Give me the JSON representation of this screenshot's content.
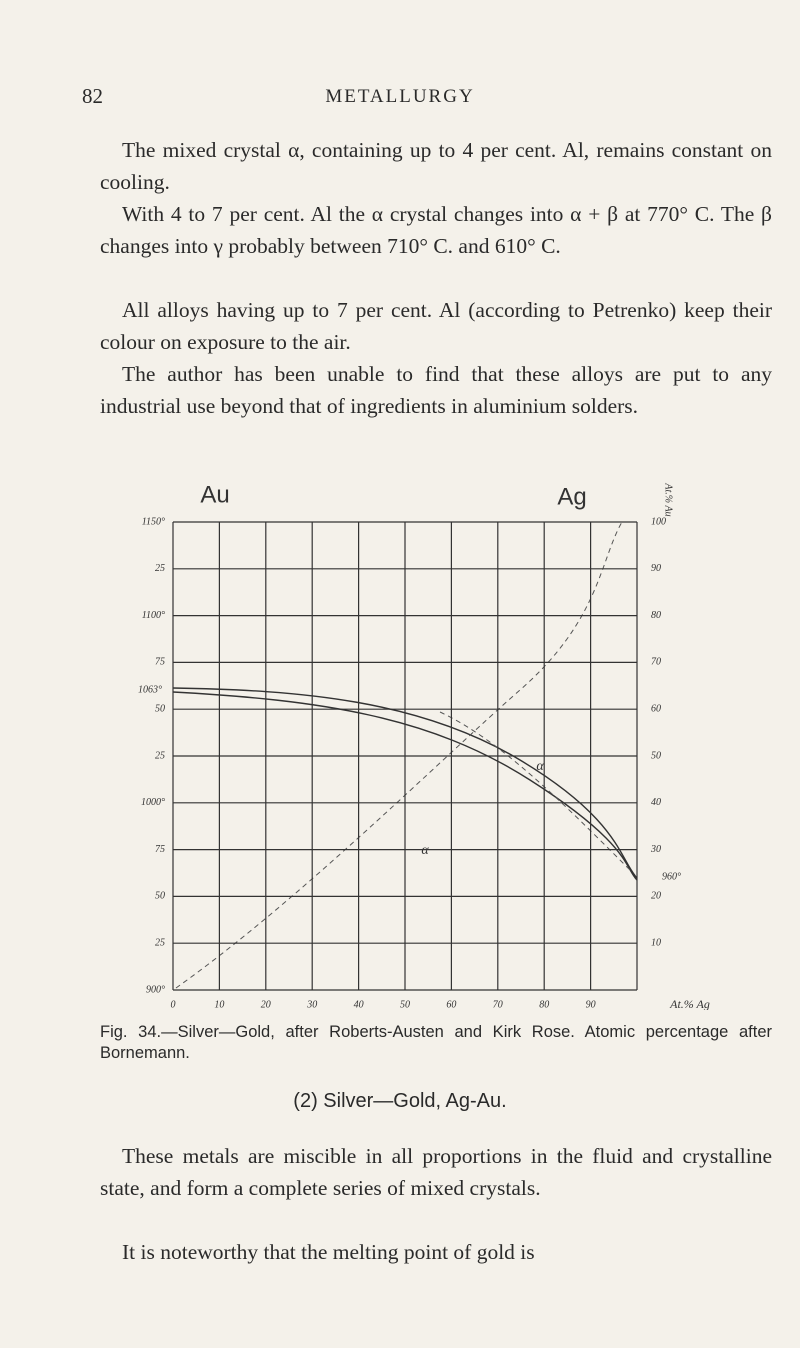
{
  "header": {
    "page_number": "82",
    "title": "METALLURGY"
  },
  "paragraphs": [
    "The mixed crystal α, containing up to 4 per cent. Al, remains constant on cooling.",
    "With 4 to 7 per cent. Al the α crystal changes into α + β at 770° C. The β changes into γ probably between 710° C. and 610° C.",
    "All alloys having up to 7 per cent. Al (according to Petrenko) keep their colour on exposure to the air.",
    "The author has been unable to find that these alloys are put to any industrial use beyond that of ingredients in aluminium solders."
  ],
  "figure": {
    "top_left_label": "Au",
    "top_right_label": "Ag",
    "right_axis_title": "At.% Au",
    "left_labels": [
      "1150°",
      "25",
      "1100°",
      "75",
      "50",
      "25",
      "1000°",
      "75",
      "50",
      "25",
      "900°"
    ],
    "right_labels": [
      "100",
      "90",
      "80",
      "70",
      "60",
      "50",
      "40",
      "30",
      "20",
      "10"
    ],
    "bottom_labels": [
      "0",
      "10",
      "20",
      "30",
      "40",
      "50",
      "60",
      "70",
      "80",
      "90"
    ],
    "bottom_axis_title": "At.% Ag",
    "annotations": [
      "1063°",
      "960°",
      "α",
      "α"
    ],
    "caption": "Fig. 34.—Silver—Gold, after Roberts-Austen and Kirk Rose. Atomic percentage after Bornemann."
  },
  "section": {
    "heading": "(2) Silver—Gold, Ag-Au.",
    "paragraphs": [
      "These metals are miscible in all proportions in the fluid and crystalline state, and form a complete series of mixed crystals.",
      "It is noteworthy that the melting point of gold is"
    ]
  }
}
